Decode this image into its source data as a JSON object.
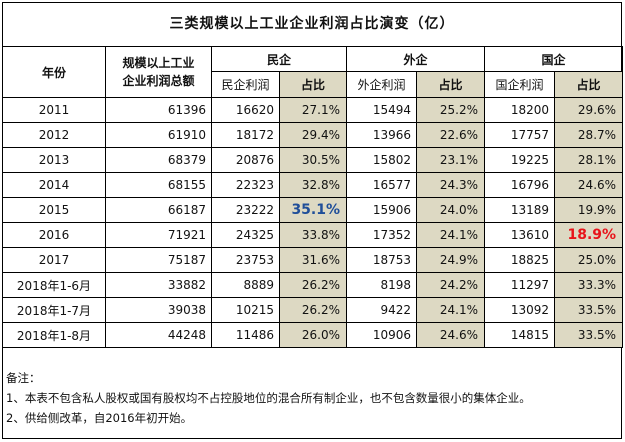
{
  "title": "三类规模以上工业企业利润占比演变（亿）",
  "headers": {
    "year": "年份",
    "total_line1": "规模以上工业",
    "total_line2": "企业利润总额",
    "private": "民企",
    "foreign": "外企",
    "state": "国企",
    "private_profit": "民企利润",
    "foreign_profit": "外企利润",
    "state_profit": "国企利润",
    "share": "占比"
  },
  "rows": [
    {
      "year": "2011",
      "total": "61396",
      "private_profit": "16620",
      "private_share": "27.1%",
      "foreign_profit": "15494",
      "foreign_share": "25.2%",
      "state_profit": "18200",
      "state_share": "29.6%"
    },
    {
      "year": "2012",
      "total": "61910",
      "private_profit": "18172",
      "private_share": "29.4%",
      "foreign_profit": "13966",
      "foreign_share": "22.6%",
      "state_profit": "17757",
      "state_share": "28.7%"
    },
    {
      "year": "2013",
      "total": "68379",
      "private_profit": "20876",
      "private_share": "30.5%",
      "foreign_profit": "15802",
      "foreign_share": "23.1%",
      "state_profit": "19225",
      "state_share": "28.1%"
    },
    {
      "year": "2014",
      "total": "68155",
      "private_profit": "22323",
      "private_share": "32.8%",
      "foreign_profit": "16577",
      "foreign_share": "24.3%",
      "state_profit": "16796",
      "state_share": "24.6%"
    },
    {
      "year": "2015",
      "total": "66187",
      "private_profit": "23222",
      "private_share": "35.1%",
      "foreign_profit": "15906",
      "foreign_share": "24.0%",
      "state_profit": "13189",
      "state_share": "19.9%"
    },
    {
      "year": "2016",
      "total": "71921",
      "private_profit": "24325",
      "private_share": "33.8%",
      "foreign_profit": "17352",
      "foreign_share": "24.1%",
      "state_profit": "13610",
      "state_share": "18.9%"
    },
    {
      "year": "2017",
      "total": "75187",
      "private_profit": "23753",
      "private_share": "31.6%",
      "foreign_profit": "18753",
      "foreign_share": "24.9%",
      "state_profit": "18825",
      "state_share": "25.0%"
    },
    {
      "year": "2018年1-6月",
      "total": "33882",
      "private_profit": "8889",
      "private_share": "26.2%",
      "foreign_profit": "8198",
      "foreign_share": "24.2%",
      "state_profit": "11297",
      "state_share": "33.3%"
    },
    {
      "year": "2018年1-7月",
      "total": "39038",
      "private_profit": "10215",
      "private_share": "26.2%",
      "foreign_profit": "9422",
      "foreign_share": "24.1%",
      "state_profit": "13092",
      "state_share": "33.5%"
    },
    {
      "year": "2018年1-8月",
      "total": "44248",
      "private_profit": "11486",
      "private_share": "26.0%",
      "foreign_profit": "10906",
      "foreign_share": "24.6%",
      "state_profit": "14815",
      "state_share": "33.5%"
    }
  ],
  "highlights": {
    "private_peak_color": "#1f4e99",
    "state_low_color": "#e8141b",
    "share_cell_bg": "#ddd9c3"
  },
  "notes": {
    "heading": "备注：",
    "line1": "1、本表不包含私人股权或国有股权均不占控股地位的混合所有制企业，也不包含数量很小的集体企业。",
    "line2": "2、供给侧改革，自2016年初开始。"
  }
}
